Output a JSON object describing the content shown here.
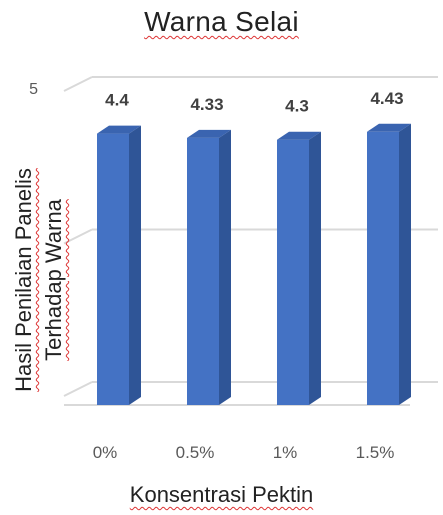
{
  "chart_data": {
    "type": "bar",
    "title": "Warna Selai",
    "xlabel": "Konsentrasi Pektin",
    "ylabel_line1": "Hasil Penilaian Panelis",
    "ylabel_line2": "Terhadap Warna",
    "categories": [
      "0%",
      "0.5%",
      "1%",
      "1.5%"
    ],
    "values": [
      4.4,
      4.33,
      4.3,
      4.43
    ],
    "data_labels": [
      "4.4",
      "4.33",
      "4.3",
      "4.43"
    ],
    "yticks": [
      "5"
    ],
    "ylim": [
      0,
      5
    ],
    "grid": true,
    "style": "3d-column",
    "colors": {
      "bar_front": "#4472C4",
      "bar_side": "#2F5597",
      "bar_top": "#3A64B0",
      "grid": "#d9d9d9"
    }
  }
}
